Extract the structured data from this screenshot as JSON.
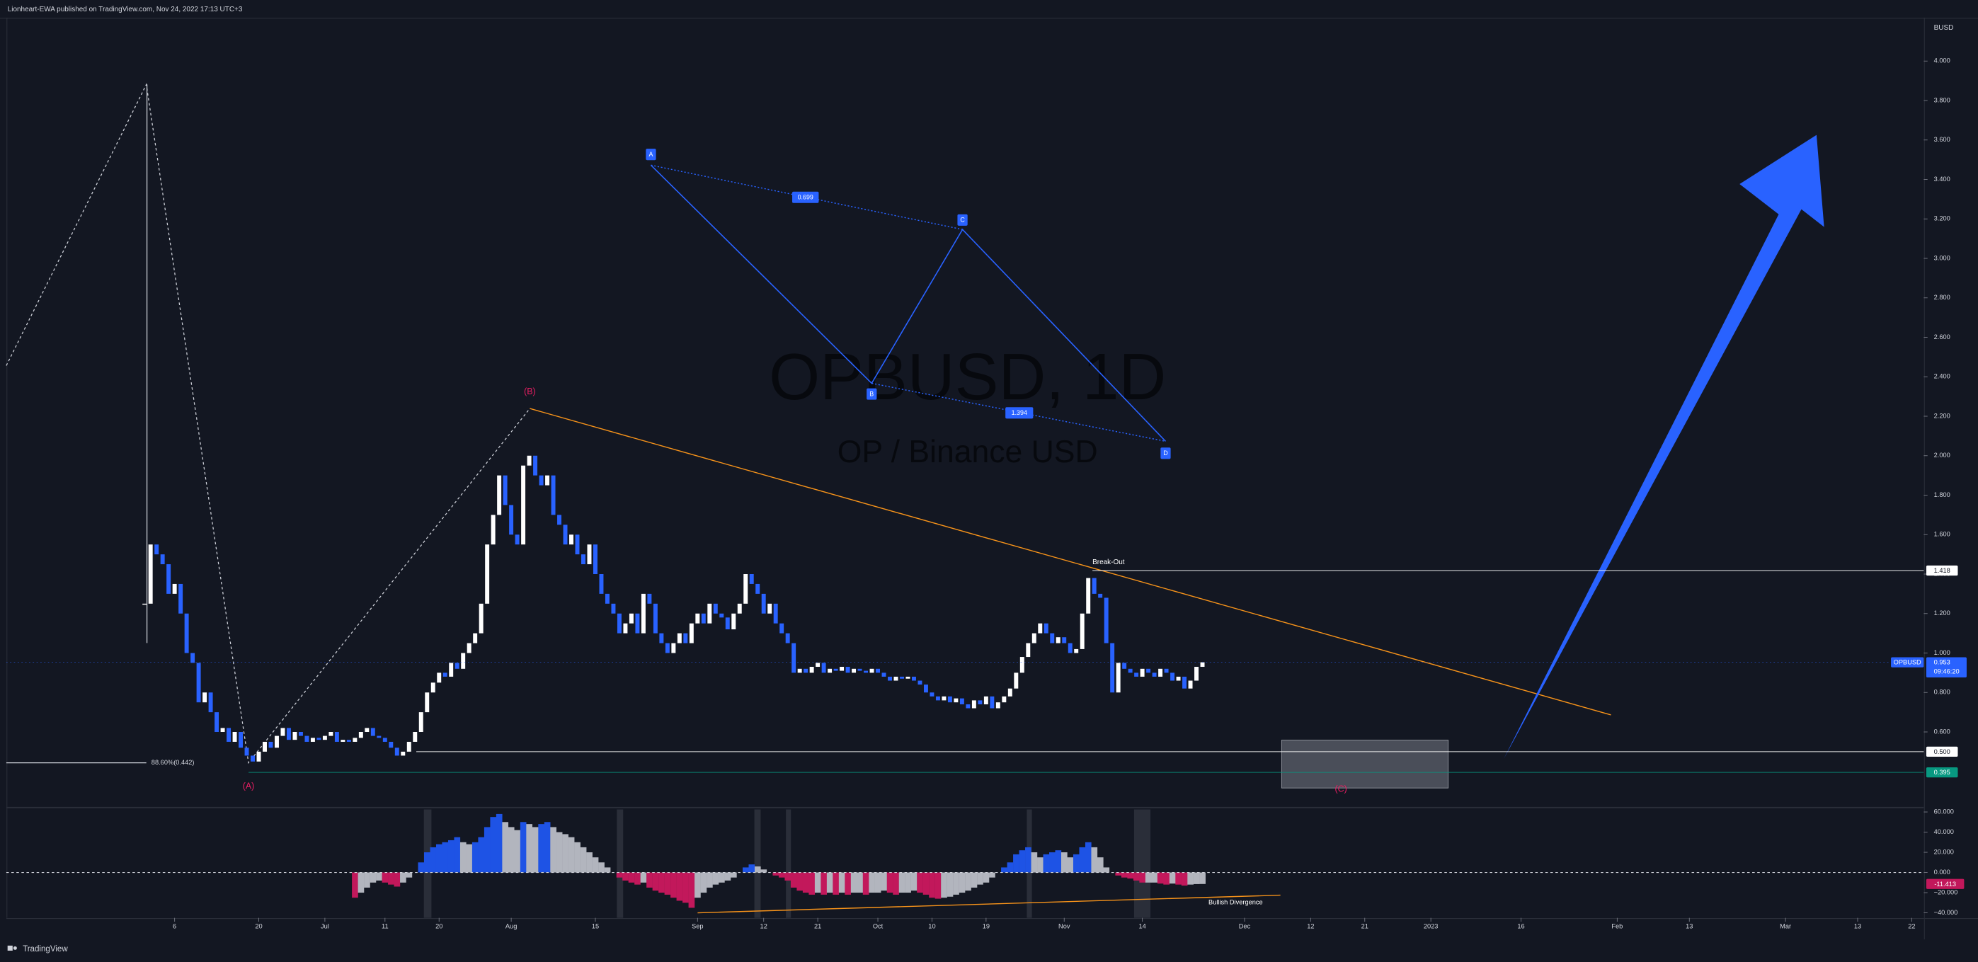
{
  "header": "Lionheart-EWA published on TradingView.com, Nov 24, 2022 17:13 UTC+3",
  "footer": "TradingView",
  "chart_data": {
    "type": "candlestick",
    "watermark_title": "OPBUSD, 1D",
    "watermark_subtitle": "OP / Binance USD",
    "currency": "BUSD",
    "symbol": "OPBUSD",
    "last_price": 0.953,
    "last_price_label": "0.953",
    "countdown": "09:46:20",
    "up_color": "#ffffff",
    "down_color": "#2962ff",
    "x": [
      "2022-06-01",
      "2022-06-02",
      "2022-06-03",
      "2022-06-04",
      "2022-06-05",
      "2022-06-06",
      "2022-06-07",
      "2022-06-08",
      "2022-06-09",
      "2022-06-10",
      "2022-06-11",
      "2022-06-12",
      "2022-06-13",
      "2022-06-14",
      "2022-06-15",
      "2022-06-16",
      "2022-06-17",
      "2022-06-18",
      "2022-06-19",
      "2022-06-20",
      "2022-06-21",
      "2022-06-22",
      "2022-06-23",
      "2022-06-24",
      "2022-06-25",
      "2022-06-26",
      "2022-06-27",
      "2022-06-28",
      "2022-06-29",
      "2022-06-30",
      "2022-07-01",
      "2022-07-02",
      "2022-07-03",
      "2022-07-04",
      "2022-07-05",
      "2022-07-06",
      "2022-07-07",
      "2022-07-08",
      "2022-07-09",
      "2022-07-10",
      "2022-07-11",
      "2022-07-12",
      "2022-07-13",
      "2022-07-14",
      "2022-07-15",
      "2022-07-16",
      "2022-07-17",
      "2022-07-18",
      "2022-07-19",
      "2022-07-20",
      "2022-07-21",
      "2022-07-22",
      "2022-07-23",
      "2022-07-24",
      "2022-07-25",
      "2022-07-26",
      "2022-07-27",
      "2022-07-28",
      "2022-07-29",
      "2022-07-30",
      "2022-07-31",
      "2022-08-01",
      "2022-08-02",
      "2022-08-03",
      "2022-08-04",
      "2022-08-05",
      "2022-08-06",
      "2022-08-07",
      "2022-08-08",
      "2022-08-09",
      "2022-08-10",
      "2022-08-11",
      "2022-08-12",
      "2022-08-13",
      "2022-08-14",
      "2022-08-15",
      "2022-08-16",
      "2022-08-17",
      "2022-08-18",
      "2022-08-19",
      "2022-08-20",
      "2022-08-21",
      "2022-08-22",
      "2022-08-23",
      "2022-08-24",
      "2022-08-25",
      "2022-08-26",
      "2022-08-27",
      "2022-08-28",
      "2022-08-29",
      "2022-08-30",
      "2022-08-31",
      "2022-09-01",
      "2022-09-02",
      "2022-09-03",
      "2022-09-04",
      "2022-09-05",
      "2022-09-06",
      "2022-09-07",
      "2022-09-08",
      "2022-09-09",
      "2022-09-10",
      "2022-09-11",
      "2022-09-12",
      "2022-09-13",
      "2022-09-14",
      "2022-09-15",
      "2022-09-16",
      "2022-09-17",
      "2022-09-18",
      "2022-09-19",
      "2022-09-20",
      "2022-09-21",
      "2022-09-22",
      "2022-09-23",
      "2022-09-24",
      "2022-09-25",
      "2022-09-26",
      "2022-09-27",
      "2022-09-28",
      "2022-09-29",
      "2022-09-30",
      "2022-10-01",
      "2022-10-02",
      "2022-10-03",
      "2022-10-04",
      "2022-10-05",
      "2022-10-06",
      "2022-10-07",
      "2022-10-08",
      "2022-10-09",
      "2022-10-10",
      "2022-10-11",
      "2022-10-12",
      "2022-10-13",
      "2022-10-14",
      "2022-10-15",
      "2022-10-16",
      "2022-10-17",
      "2022-10-18",
      "2022-10-19",
      "2022-10-20",
      "2022-10-21",
      "2022-10-22",
      "2022-10-23",
      "2022-10-24",
      "2022-10-25",
      "2022-10-26",
      "2022-10-27",
      "2022-10-28",
      "2022-10-29",
      "2022-10-30",
      "2022-10-31",
      "2022-11-01",
      "2022-11-02",
      "2022-11-03",
      "2022-11-04",
      "2022-11-05",
      "2022-11-06",
      "2022-11-07",
      "2022-11-08",
      "2022-11-09",
      "2022-11-10",
      "2022-11-11",
      "2022-11-12",
      "2022-11-13",
      "2022-11-14",
      "2022-11-15",
      "2022-11-16",
      "2022-11-17",
      "2022-11-18",
      "2022-11-19",
      "2022-11-20",
      "2022-11-21",
      "2022-11-22",
      "2022-11-23",
      "2022-11-24"
    ],
    "close": [
      1.25,
      1.55,
      1.5,
      1.45,
      1.3,
      1.35,
      1.2,
      1.0,
      0.95,
      0.75,
      0.8,
      0.7,
      0.6,
      0.62,
      0.55,
      0.6,
      0.52,
      0.48,
      0.45,
      0.5,
      0.55,
      0.52,
      0.58,
      0.62,
      0.56,
      0.6,
      0.58,
      0.55,
      0.57,
      0.56,
      0.58,
      0.6,
      0.55,
      0.56,
      0.55,
      0.57,
      0.6,
      0.62,
      0.58,
      0.57,
      0.55,
      0.52,
      0.48,
      0.5,
      0.55,
      0.6,
      0.7,
      0.8,
      0.85,
      0.9,
      0.88,
      0.95,
      0.92,
      1.0,
      1.05,
      1.1,
      1.25,
      1.55,
      1.7,
      1.9,
      1.75,
      1.6,
      1.55,
      1.95,
      2.0,
      1.9,
      1.85,
      1.9,
      1.7,
      1.65,
      1.55,
      1.6,
      1.5,
      1.45,
      1.55,
      1.4,
      1.3,
      1.25,
      1.2,
      1.1,
      1.15,
      1.2,
      1.1,
      1.3,
      1.25,
      1.1,
      1.05,
      1.0,
      1.05,
      1.1,
      1.05,
      1.15,
      1.2,
      1.15,
      1.25,
      1.2,
      1.18,
      1.12,
      1.2,
      1.25,
      1.4,
      1.35,
      1.3,
      1.2,
      1.25,
      1.15,
      1.1,
      1.05,
      0.9,
      0.92,
      0.9,
      0.93,
      0.95,
      0.9,
      0.92,
      0.91,
      0.93,
      0.9,
      0.92,
      0.91,
      0.9,
      0.92,
      0.9,
      0.88,
      0.86,
      0.88,
      0.87,
      0.88,
      0.86,
      0.84,
      0.8,
      0.78,
      0.76,
      0.78,
      0.75,
      0.77,
      0.74,
      0.72,
      0.76,
      0.74,
      0.78,
      0.72,
      0.75,
      0.78,
      0.82,
      0.9,
      0.98,
      1.05,
      1.1,
      1.15,
      1.1,
      1.05,
      1.08,
      1.05,
      1.0,
      1.02,
      1.2,
      1.38,
      1.3,
      1.28,
      1.05,
      0.8,
      0.95,
      0.92,
      0.9,
      0.88,
      0.92,
      0.9,
      0.88,
      0.92,
      0.9,
      0.86,
      0.88,
      0.82,
      0.86,
      0.93,
      0.953
    ],
    "xlim": [
      "2022-05-09",
      "2023-03-24"
    ],
    "xticks": [
      {
        "value": "2022-06-06",
        "label": "6"
      },
      {
        "value": "2022-06-20",
        "label": "20"
      },
      {
        "value": "2022-07-01",
        "label": "Jul"
      },
      {
        "value": "2022-07-11",
        "label": "11"
      },
      {
        "value": "2022-07-20",
        "label": "20"
      },
      {
        "value": "2022-08-01",
        "label": "Aug"
      },
      {
        "value": "2022-08-15",
        "label": "15"
      },
      {
        "value": "2022-09-01",
        "label": "Sep"
      },
      {
        "value": "2022-09-12",
        "label": "12"
      },
      {
        "value": "2022-09-21",
        "label": "21"
      },
      {
        "value": "2022-10-01",
        "label": "Oct"
      },
      {
        "value": "2022-10-10",
        "label": "10"
      },
      {
        "value": "2022-10-19",
        "label": "19"
      },
      {
        "value": "2022-11-01",
        "label": "Nov"
      },
      {
        "value": "2022-11-14",
        "label": "14"
      },
      {
        "value": "2022-12-01",
        "label": "Dec"
      },
      {
        "value": "2022-12-12",
        "label": "12"
      },
      {
        "value": "2022-12-21",
        "label": "21"
      },
      {
        "value": "2023-01-01",
        "label": "2023"
      },
      {
        "value": "2023-01-16",
        "label": "16"
      },
      {
        "value": "2023-02-01",
        "label": "Feb"
      },
      {
        "value": "2023-02-13",
        "label": "13"
      },
      {
        "value": "2023-03-01",
        "label": "Mar"
      },
      {
        "value": "2023-03-13",
        "label": "13"
      },
      {
        "value": "2023-03-22",
        "label": "22"
      }
    ],
    "ylim": [
      0.22,
      4.22
    ],
    "yticks": [
      {
        "value": 4,
        "label": "4.000"
      },
      {
        "value": 3.8,
        "label": "3.800"
      },
      {
        "value": 3.6,
        "label": "3.600"
      },
      {
        "value": 3.4,
        "label": "3.400"
      },
      {
        "value": 3.2,
        "label": "3.200"
      },
      {
        "value": 3,
        "label": "3.000"
      },
      {
        "value": 2.8,
        "label": "2.800"
      },
      {
        "value": 2.6,
        "label": "2.600"
      },
      {
        "value": 2.4,
        "label": "2.400"
      },
      {
        "value": 2.2,
        "label": "2.200"
      },
      {
        "value": 2,
        "label": "2.000"
      },
      {
        "value": 1.8,
        "label": "1.800"
      },
      {
        "value": 1.6,
        "label": "1.600"
      },
      {
        "value": 1.4,
        "label": "1.400"
      },
      {
        "value": 1.2,
        "label": "1.200"
      },
      {
        "value": 1,
        "label": "1.000"
      },
      {
        "value": 0.8,
        "label": "0.800"
      },
      {
        "value": 0.6,
        "label": "0.600"
      }
    ],
    "price_lines": [
      {
        "value": 1.418,
        "label": "1.418",
        "color": "#ffffff"
      },
      {
        "value": 0.5,
        "label": "0.500",
        "color": "#ffffff"
      },
      {
        "value": 0.395,
        "label": "0.395",
        "color": "#089981"
      }
    ],
    "annotations": {
      "A": "A",
      "B": "B",
      "C": "C",
      "D": "D",
      "ratio_ac": "0.699",
      "ratio_bd": "1.394",
      "wave_a": "(A)",
      "wave_b": "(B)",
      "wave_c": "(C)",
      "breakout": "Break-Out",
      "divergence": "Bullish Divergence",
      "fib": "88.60%(0.442)"
    },
    "oscillator": {
      "values": [
        null,
        null,
        null,
        null,
        null,
        null,
        null,
        null,
        null,
        null,
        null,
        null,
        null,
        null,
        null,
        null,
        null,
        null,
        null,
        null,
        null,
        null,
        null,
        null,
        null,
        null,
        null,
        null,
        null,
        null,
        null,
        null,
        null,
        null,
        null,
        -25,
        -20,
        -15,
        -10,
        -8,
        -10,
        -12,
        -14,
        -10,
        -5,
        0,
        10,
        20,
        25,
        28,
        30,
        32,
        35,
        30,
        28,
        30,
        35,
        45,
        55,
        58,
        50,
        45,
        42,
        50,
        48,
        45,
        48,
        50,
        45,
        40,
        38,
        35,
        30,
        25,
        20,
        15,
        10,
        5,
        0,
        -5,
        -8,
        -10,
        -12,
        -10,
        -15,
        -18,
        -20,
        -22,
        -25,
        -28,
        -30,
        -35,
        -25,
        -20,
        -15,
        -12,
        -10,
        -8,
        -5,
        0,
        5,
        8,
        6,
        3,
        0,
        -3,
        -5,
        -8,
        -15,
        -18,
        -20,
        -22,
        -20,
        -22,
        -20,
        -22,
        -20,
        -22,
        -20,
        -20,
        -22,
        -20,
        -20,
        -18,
        -20,
        -22,
        -20,
        -20,
        -18,
        -20,
        -22,
        -25,
        -26,
        -25,
        -24,
        -22,
        -20,
        -18,
        -15,
        -12,
        -10,
        -5,
        0,
        5,
        10,
        18,
        22,
        25,
        20,
        15,
        18,
        20,
        22,
        20,
        15,
        18,
        25,
        30,
        25,
        15,
        5,
        0,
        -3,
        -5,
        -6,
        -8,
        -10,
        -10,
        -10,
        -11,
        -12,
        -11,
        -12,
        -13,
        -12,
        -11.5,
        -11.413
      ],
      "ylim": [
        -47.5,
        65
      ],
      "yticks": [
        {
          "value": 60,
          "label": "60.000"
        },
        {
          "value": 40,
          "label": "40.000"
        },
        {
          "value": 20,
          "label": "20.000"
        },
        {
          "value": 0,
          "label": "0.000"
        },
        {
          "value": -20,
          "label": "−20.000"
        },
        {
          "value": -40,
          "label": "−40.000"
        }
      ],
      "last_value": -11.413,
      "last_value_label": "-11.413",
      "colors": {
        "rise_above": "#1e53e5",
        "fall_above": "#b2b5be",
        "fall_below": "#c2185b",
        "rise_below": "#b2b5be"
      }
    }
  }
}
